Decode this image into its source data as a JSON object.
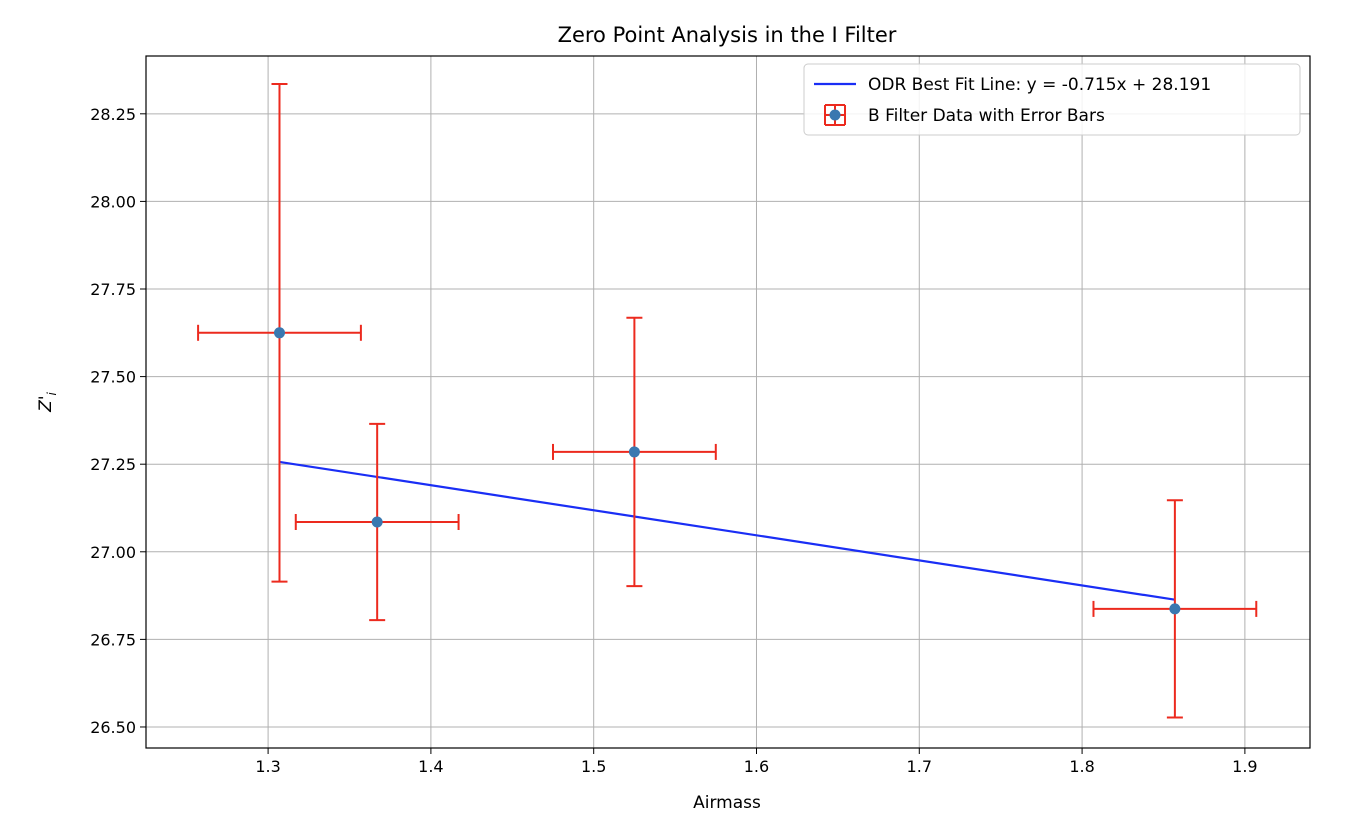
{
  "chart_data": {
    "type": "scatter",
    "title": "Zero Point Analysis in the I Filter",
    "xlabel": "Airmass",
    "ylabel": "Z'",
    "ylabel_subscript": "i",
    "xlim": [
      1.225,
      1.94
    ],
    "ylim": [
      26.44,
      28.415
    ],
    "x_ticks": [
      1.3,
      1.4,
      1.5,
      1.6,
      1.7,
      1.8,
      1.9
    ],
    "x_tick_labels": [
      "1.3",
      "1.4",
      "1.5",
      "1.6",
      "1.7",
      "1.8",
      "1.9"
    ],
    "y_ticks": [
      26.5,
      26.75,
      27.0,
      27.25,
      27.5,
      27.75,
      28.0,
      28.25
    ],
    "y_tick_labels": [
      "26.50",
      "26.75",
      "27.00",
      "27.25",
      "27.50",
      "27.75",
      "28.00",
      "28.25"
    ],
    "grid": true,
    "legend_position": "top-right",
    "series": [
      {
        "name": "B Filter Data with Error Bars",
        "kind": "errorbar",
        "marker_color": "#3a78b0",
        "error_color": "#ec2a1e",
        "points": [
          {
            "x": 1.307,
            "y": 27.625,
            "xerr": 0.05,
            "yerr": 0.71
          },
          {
            "x": 1.367,
            "y": 27.085,
            "xerr": 0.05,
            "yerr": 0.28
          },
          {
            "x": 1.525,
            "y": 27.285,
            "xerr": 0.05,
            "yerr": 0.383
          },
          {
            "x": 1.857,
            "y": 26.837,
            "xerr": 0.05,
            "yerr": 0.31
          }
        ]
      },
      {
        "name": "ODR Best Fit Line: y = -0.715x + 28.191",
        "kind": "line",
        "color": "#1a2ef5",
        "slope": -0.715,
        "intercept": 28.191,
        "x_range": [
          1.307,
          1.857
        ]
      }
    ]
  }
}
